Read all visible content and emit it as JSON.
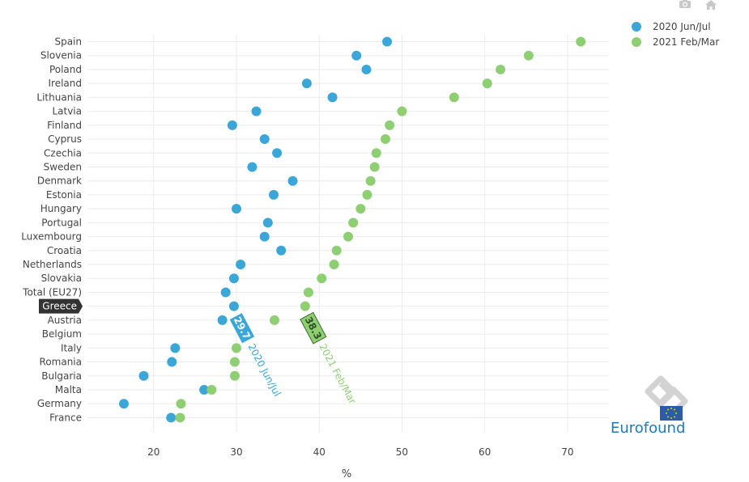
{
  "toolbar": {
    "icons": [
      "camera-icon",
      "home-icon"
    ]
  },
  "logo": {
    "text": "Eurofound"
  },
  "colors": {
    "series1": "#3ba6d8",
    "series2": "#8fcf74",
    "grid": "#ebebeb",
    "text": "#444444",
    "hover_country_bg": "#333333"
  },
  "chart_data": {
    "type": "scatter",
    "orientation": "horizontal-dot",
    "title": "",
    "xlabel": "%",
    "ylabel": "",
    "xlim": [
      12,
      75
    ],
    "xticks": [
      20,
      30,
      40,
      50,
      60,
      70
    ],
    "legend_position": "top-right",
    "grid": true,
    "categories": [
      "Spain",
      "Slovenia",
      "Poland",
      "Ireland",
      "Lithuania",
      "Latvia",
      "Finland",
      "Cyprus",
      "Czechia",
      "Sweden",
      "Denmark",
      "Estonia",
      "Hungary",
      "Portugal",
      "Luxembourg",
      "Croatia",
      "Netherlands",
      "Slovakia",
      "Total (EU27)",
      "Greece",
      "Austria",
      "Belgium",
      "Italy",
      "Romania",
      "Bulgaria",
      "Malta",
      "Germany",
      "France"
    ],
    "series": [
      {
        "name": "2020 Jun/Jul",
        "color": "#3ba6d8",
        "values": [
          48.2,
          44.5,
          45.7,
          38.5,
          41.6,
          32.4,
          29.5,
          33.4,
          34.9,
          31.9,
          36.8,
          34.5,
          30.0,
          33.8,
          33.4,
          35.4,
          30.5,
          29.7,
          28.7,
          29.7,
          28.3,
          null,
          22.6,
          22.2,
          18.8,
          26.1,
          16.4,
          22.1
        ]
      },
      {
        "name": "2021 Feb/Mar",
        "color": "#8fcf74",
        "values": [
          71.6,
          65.3,
          61.9,
          60.3,
          56.3,
          50.0,
          48.5,
          48.0,
          46.9,
          46.7,
          46.2,
          45.8,
          45.0,
          44.1,
          43.5,
          42.1,
          41.8,
          40.3,
          38.7,
          38.3,
          34.6,
          null,
          30.0,
          29.8,
          29.8,
          27.0,
          23.3,
          23.2
        ]
      }
    ],
    "hover": {
      "category": "Greece",
      "labels": [
        {
          "series": "2020 Jun/Jul",
          "value": "29.7",
          "label": "29.7",
          "name": "2020 Jun/Jul"
        },
        {
          "series": "2021 Feb/Mar",
          "value": "38.3",
          "label": "38.3",
          "name": "2021 Feb/Mar"
        }
      ]
    }
  }
}
